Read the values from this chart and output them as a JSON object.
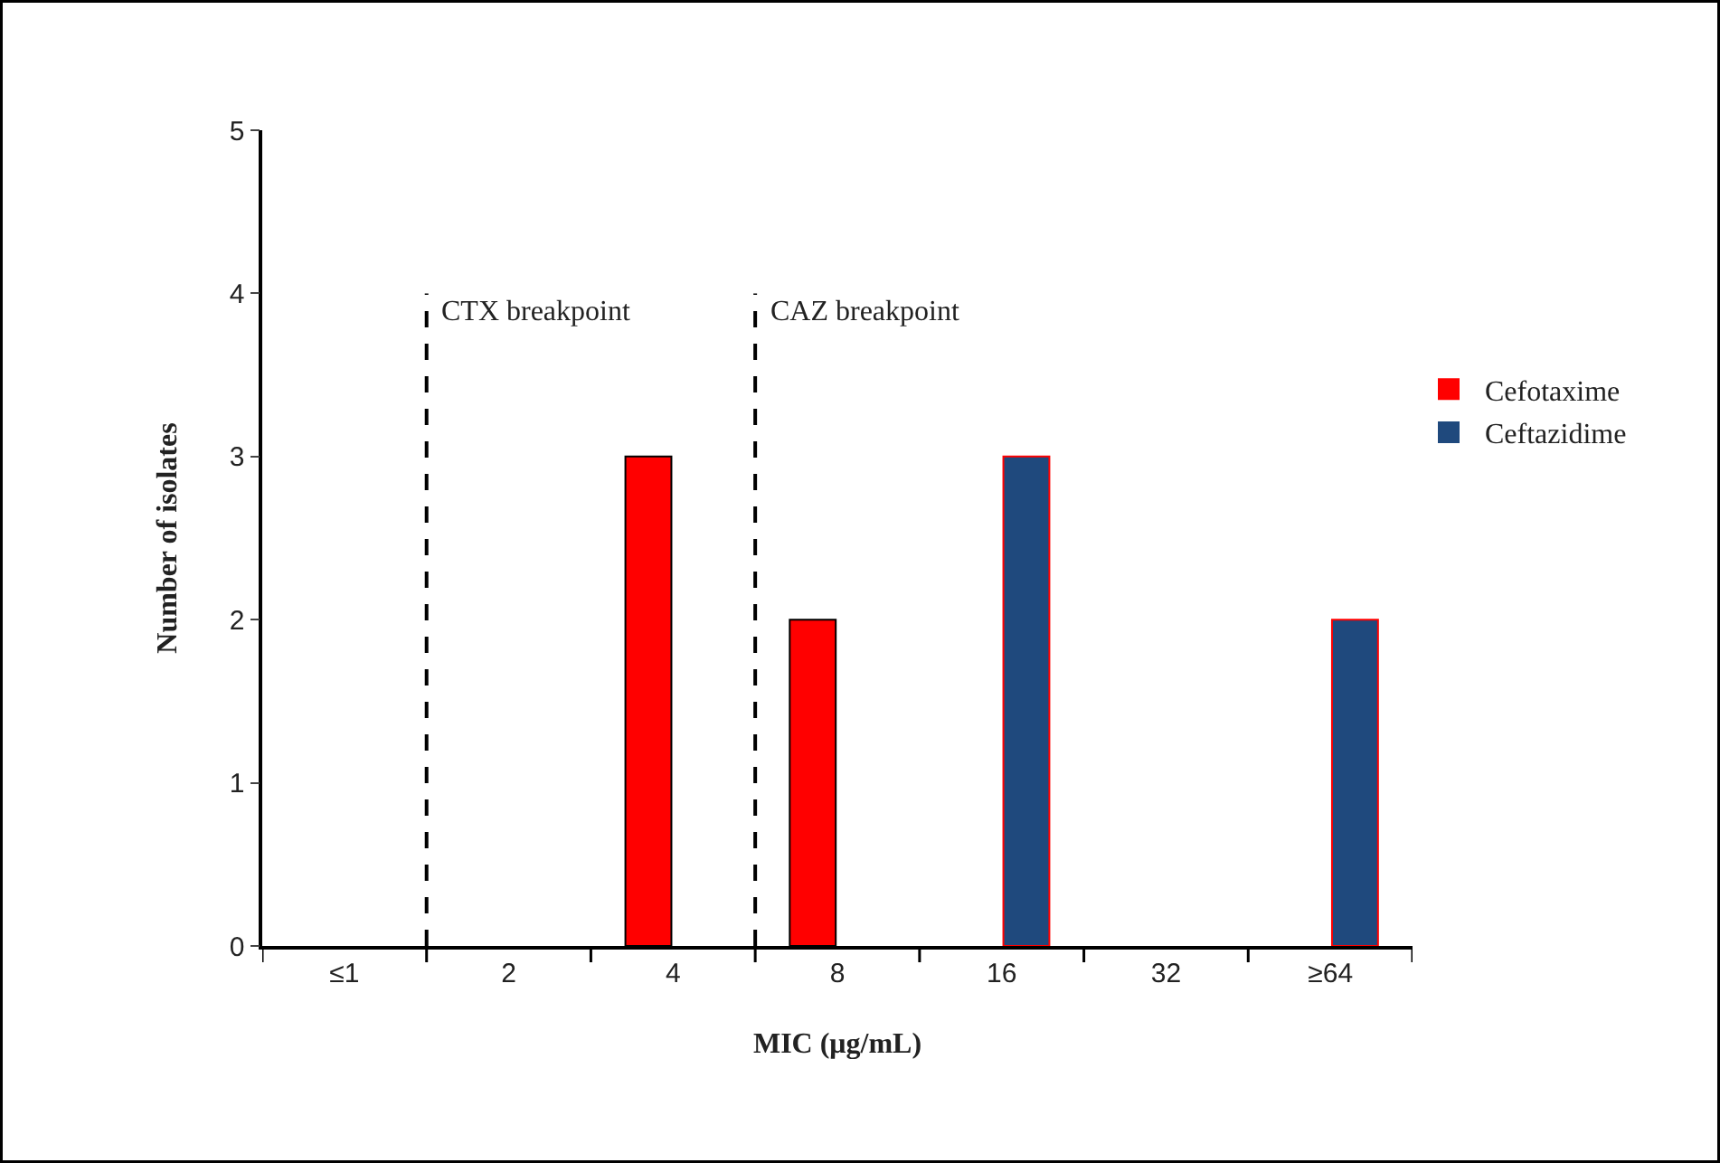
{
  "chart_data": {
    "type": "bar",
    "xlabel": "MIC (μg/mL)",
    "ylabel": "Number of isolates",
    "categories": [
      "≤1",
      "2",
      "4",
      "8",
      "16",
      "32",
      "≥64"
    ],
    "series": [
      {
        "name": "Cefotaxime",
        "color": "#ff0000",
        "values": [
          0,
          0,
          3,
          2,
          0,
          0,
          0
        ]
      },
      {
        "name": "Ceftazidime",
        "color": "#1f497d",
        "values": [
          0,
          0,
          0,
          0,
          3,
          0,
          2
        ]
      }
    ],
    "ylim": [
      0,
      5
    ],
    "yticks": [
      0,
      1,
      2,
      3,
      4,
      5
    ],
    "legend": "right",
    "annotations": [
      "CTX breakpoint",
      "CAZ breakpoint"
    ]
  }
}
